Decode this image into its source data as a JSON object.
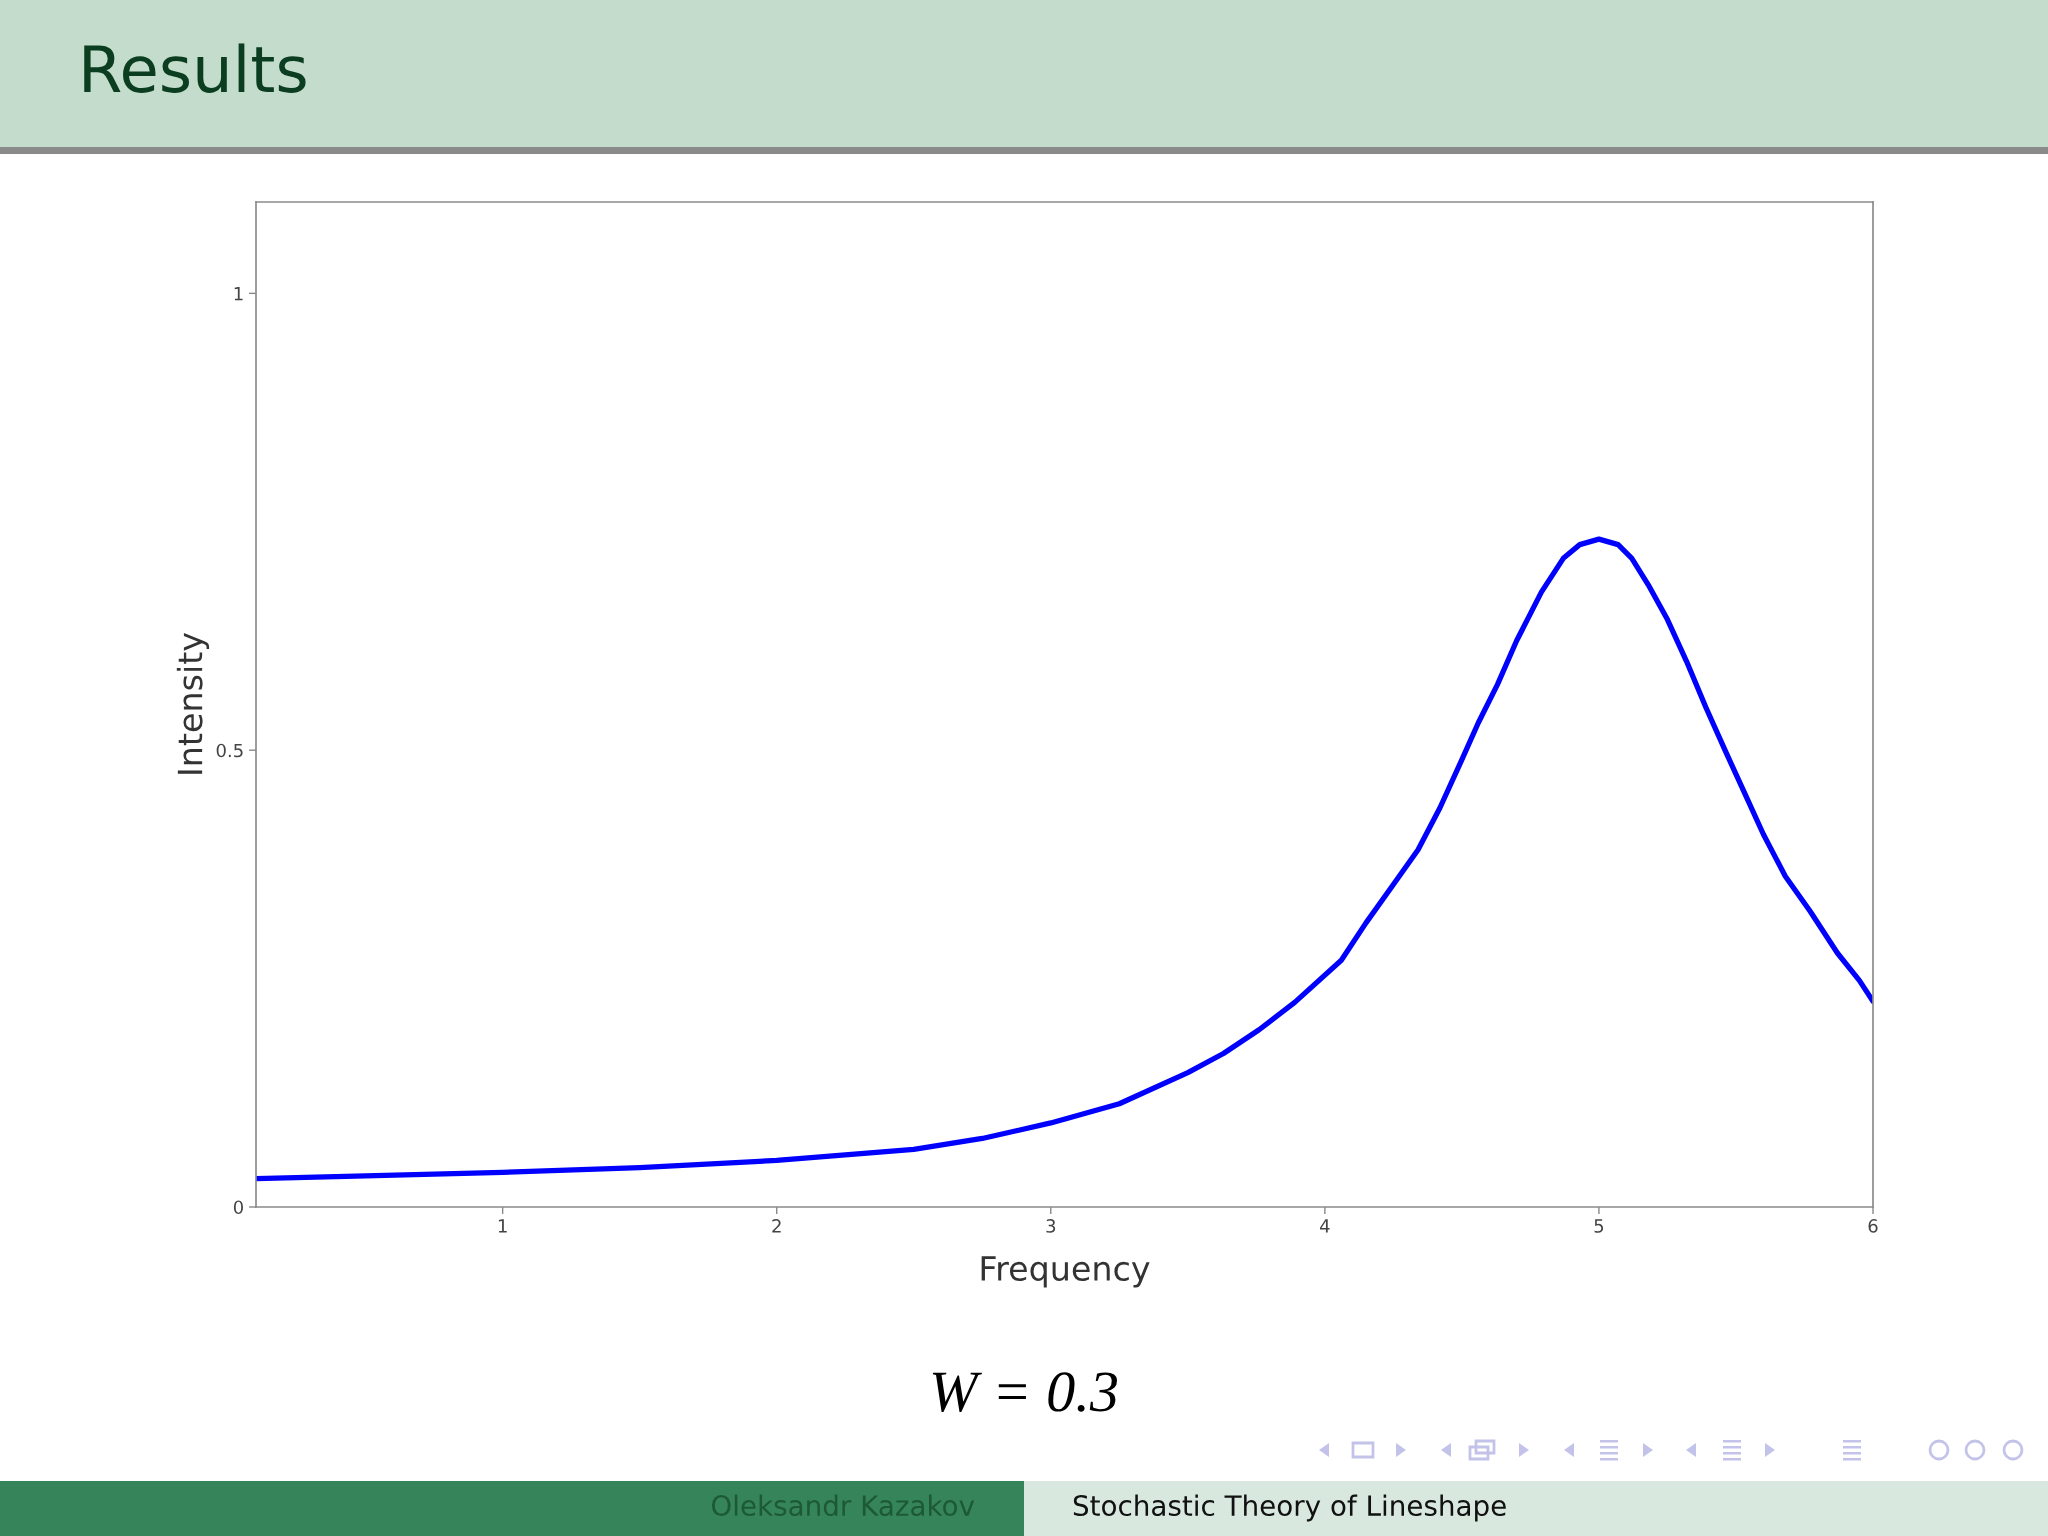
{
  "chart_data": {
    "type": "line",
    "title": "Results",
    "xlabel": "Frequency",
    "ylabel": "Intensity",
    "x": [
      0.1,
      0.5,
      1.0,
      1.5,
      2.0,
      2.5,
      2.75,
      3.0,
      3.25,
      3.5,
      3.63,
      3.76,
      3.89,
      4.06,
      4.15,
      4.25,
      4.34,
      4.42,
      4.49,
      4.56,
      4.63,
      4.7,
      4.79,
      4.87,
      4.93,
      5.0,
      5.07,
      5.12,
      5.18,
      5.25,
      5.32,
      5.39,
      5.46,
      5.53,
      5.6,
      5.68,
      5.77,
      5.87,
      5.95,
      6.0
    ],
    "series": [
      {
        "color": "#0000ff",
        "values": [
          0.031,
          0.034,
          0.038,
          0.043,
          0.051,
          0.063,
          0.075,
          0.092,
          0.113,
          0.147,
          0.168,
          0.194,
          0.224,
          0.27,
          0.311,
          0.353,
          0.391,
          0.437,
          0.483,
          0.53,
          0.572,
          0.62,
          0.673,
          0.71,
          0.725,
          0.731,
          0.725,
          0.71,
          0.681,
          0.643,
          0.597,
          0.547,
          0.5,
          0.454,
          0.408,
          0.362,
          0.324,
          0.278,
          0.248,
          0.225
        ]
      }
    ],
    "xlim": [
      0.1,
      6
    ],
    "ylim": [
      0,
      1.1
    ],
    "xticks": [
      1,
      2,
      3,
      4,
      5,
      6
    ],
    "yticks": [
      0,
      0.5,
      1
    ],
    "grid": false,
    "marker": "none",
    "line_style": "solid",
    "annotations": [
      "W = 0.3",
      "Oleksandr Kazakov",
      "Stochastic Theory of Lineshape"
    ]
  }
}
